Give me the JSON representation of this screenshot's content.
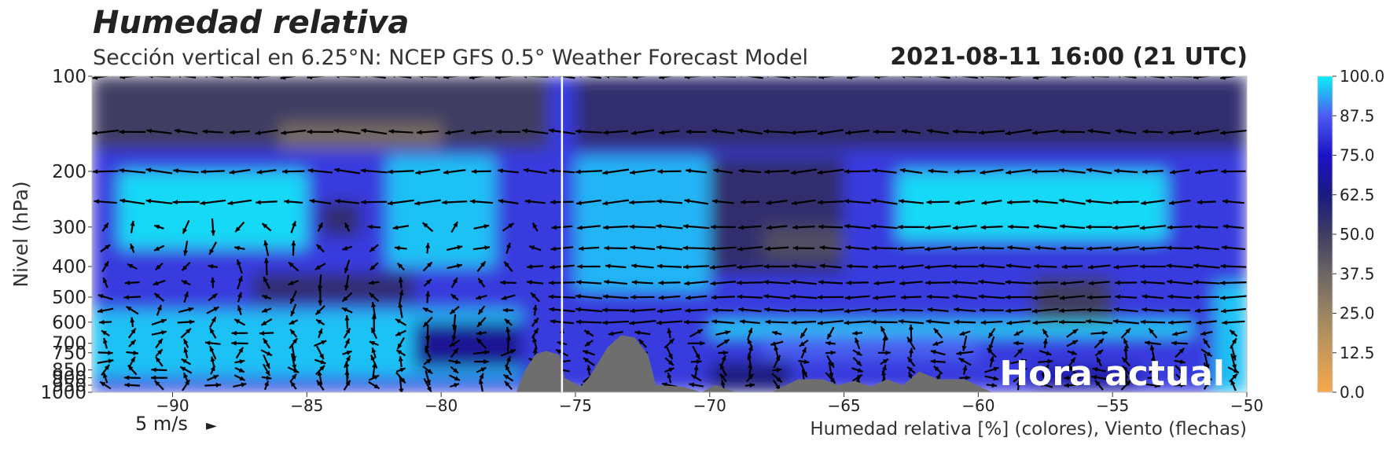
{
  "header": {
    "title": "Humedad relativa",
    "subtitle": "Sección vertical en 6.25°N: NCEP GFS 0.5° Weather Forecast Model",
    "datetime": "2021-08-11 16:00 (21 UTC)"
  },
  "overlay": {
    "current_time_label": "Hora actual",
    "current_time_lon": -75.5
  },
  "wind_scale": {
    "label": "5 m/s",
    "arrow": "►"
  },
  "colors": {
    "terrain": "#6e6e6e",
    "arrows": "#000000",
    "marker_line": "#ffffff"
  },
  "chart_data": {
    "type": "heatmap",
    "title": "Humedad relativa",
    "xlabel": "Humedad relativa [%] (colores), Viento (flechas)",
    "ylabel": "Nivel (hPa)",
    "xlim": [
      -93,
      -50
    ],
    "ylim": [
      1000,
      100
    ],
    "x_ticks": [
      -90,
      -85,
      -80,
      -75,
      -70,
      -65,
      -60,
      -55,
      -50
    ],
    "x_tick_labels": [
      "−90",
      "−85",
      "−80",
      "−75",
      "−70",
      "−65",
      "−60",
      "−55",
      "−50"
    ],
    "y_ticks": [
      100,
      200,
      300,
      400,
      500,
      600,
      700,
      750,
      850,
      900,
      950,
      1000
    ],
    "y_tick_labels": [
      "100",
      "200",
      "300",
      "400",
      "500",
      "600",
      "700",
      "750",
      "850",
      "900",
      "950",
      "1000"
    ],
    "colorbar": {
      "ticks": [
        0.0,
        12.5,
        25.0,
        37.5,
        50.0,
        62.5,
        75.0,
        87.5,
        100.0
      ],
      "tick_labels": [
        "0.0",
        "12.5",
        "25.0",
        "37.5",
        "50.0",
        "62.5",
        "75.0",
        "87.5",
        "100.0"
      ],
      "stops": [
        {
          "value": 0,
          "color": "#f8a84a"
        },
        {
          "value": 12.5,
          "color": "#c9995a"
        },
        {
          "value": 25.0,
          "color": "#9a8562"
        },
        {
          "value": 37.5,
          "color": "#6d6564"
        },
        {
          "value": 50.0,
          "color": "#3f3d62"
        },
        {
          "value": 62.5,
          "color": "#1a1a80"
        },
        {
          "value": 75.0,
          "color": "#1c12c8"
        },
        {
          "value": 87.5,
          "color": "#4c5cf0"
        },
        {
          "value": 100.0,
          "color": "#0af0f8"
        }
      ]
    },
    "terrain_profile": [
      {
        "lon": -77.2,
        "p": 1000
      },
      {
        "lon": -76.9,
        "p": 860
      },
      {
        "lon": -76.5,
        "p": 760
      },
      {
        "lon": -76.1,
        "p": 740
      },
      {
        "lon": -75.6,
        "p": 760
      },
      {
        "lon": -75.4,
        "p": 900
      },
      {
        "lon": -74.8,
        "p": 960
      },
      {
        "lon": -74.5,
        "p": 900
      },
      {
        "lon": -73.8,
        "p": 720
      },
      {
        "lon": -73.3,
        "p": 660
      },
      {
        "lon": -72.8,
        "p": 670
      },
      {
        "lon": -72.3,
        "p": 760
      },
      {
        "lon": -72.0,
        "p": 950
      },
      {
        "lon": -71.0,
        "p": 960
      },
      {
        "lon": -70.3,
        "p": 1000
      },
      {
        "lon": -69.8,
        "p": 950
      },
      {
        "lon": -69.0,
        "p": 1000
      },
      {
        "lon": -67.7,
        "p": 1000
      },
      {
        "lon": -66.7,
        "p": 910
      },
      {
        "lon": -65.8,
        "p": 910
      },
      {
        "lon": -65.2,
        "p": 950
      },
      {
        "lon": -64.6,
        "p": 920
      },
      {
        "lon": -64.0,
        "p": 960
      },
      {
        "lon": -63.4,
        "p": 910
      },
      {
        "lon": -62.8,
        "p": 950
      },
      {
        "lon": -62.2,
        "p": 860
      },
      {
        "lon": -61.5,
        "p": 910
      },
      {
        "lon": -60.5,
        "p": 910
      },
      {
        "lon": -59.5,
        "p": 1000
      }
    ],
    "rh_regions": [
      {
        "lon": [
          -93,
          -50
        ],
        "p": [
          100,
          1000
        ],
        "rh": 82
      },
      {
        "lon": [
          -93,
          -76
        ],
        "p": [
          100,
          170
        ],
        "rh": 50
      },
      {
        "lon": [
          -75,
          -50
        ],
        "p": [
          100,
          170
        ],
        "rh": 55
      },
      {
        "lon": [
          -86,
          -80
        ],
        "p": [
          140,
          170
        ],
        "rh": 35
      },
      {
        "lon": [
          -92,
          -85
        ],
        "p": [
          200,
          350
        ],
        "rh": 98
      },
      {
        "lon": [
          -82,
          -78
        ],
        "p": [
          180,
          400
        ],
        "rh": 96
      },
      {
        "lon": [
          -84.5,
          -83
        ],
        "p": [
          250,
          320
        ],
        "rh": 55
      },
      {
        "lon": [
          -87,
          -81
        ],
        "p": [
          420,
          520
        ],
        "rh": 55
      },
      {
        "lon": [
          -93,
          -77
        ],
        "p": [
          550,
          900
        ],
        "rh": 96
      },
      {
        "lon": [
          -81,
          -77
        ],
        "p": [
          600,
          840
        ],
        "rh": 66
      },
      {
        "lon": [
          -75,
          -70
        ],
        "p": [
          180,
          480
        ],
        "rh": 95
      },
      {
        "lon": [
          -70,
          -65
        ],
        "p": [
          180,
          420
        ],
        "rh": 55
      },
      {
        "lon": [
          -68,
          -65
        ],
        "p": [
          300,
          380
        ],
        "rh": 45
      },
      {
        "lon": [
          -63,
          -53
        ],
        "p": [
          200,
          330
        ],
        "rh": 98
      },
      {
        "lon": [
          -58,
          -55
        ],
        "p": [
          430,
          600
        ],
        "rh": 50
      },
      {
        "lon": [
          -70,
          -52
        ],
        "p": [
          600,
          660
        ],
        "rh": 98
      },
      {
        "lon": [
          -68,
          -60
        ],
        "p": [
          650,
          780
        ],
        "rh": 88
      },
      {
        "lon": [
          -70,
          -67
        ],
        "p": [
          800,
          1000
        ],
        "rh": 62
      },
      {
        "lon": [
          -58,
          -54
        ],
        "p": [
          830,
          980
        ],
        "rh": 68
      },
      {
        "lon": [
          -51.2,
          -50
        ],
        "p": [
          450,
          1000
        ],
        "rh": 96
      }
    ],
    "wind_field": {
      "note_units": "m/s",
      "levels_hPa": [
        100,
        150,
        200,
        250,
        300,
        350,
        400,
        450,
        500,
        550,
        600,
        650,
        700,
        750,
        800,
        850,
        900,
        950
      ],
      "lon_step_deg": 1.0
    }
  }
}
